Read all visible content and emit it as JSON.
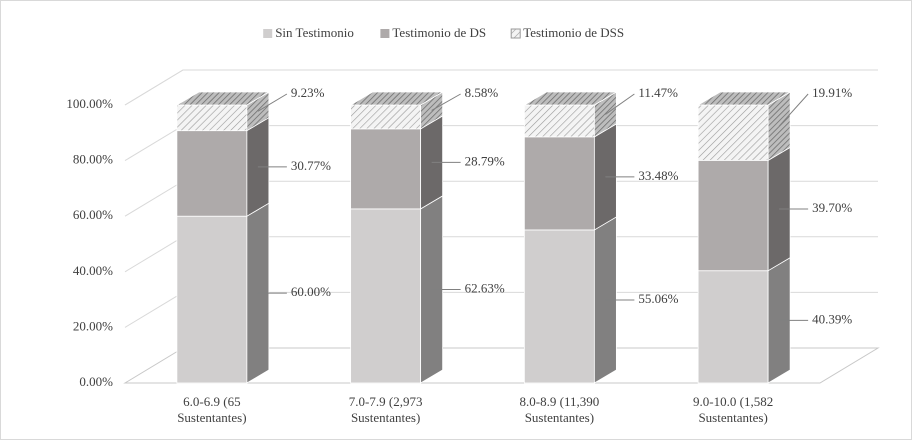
{
  "chart_data": {
    "type": "bar3d_stacked",
    "categories": [
      "6.0-6.9 (65 Sustentantes)",
      "7.0-7.9 (2,973 Sustentantes)",
      "8.0-8.9 (11,390 Sustentantes)",
      "9.0-10.0 (1,582 Sustentantes)"
    ],
    "series": [
      {
        "name": "Sin Testimonio",
        "color": "#d0cece",
        "values": [
          60.0,
          62.63,
          55.06,
          40.39
        ],
        "value_labels": [
          "60.00%",
          "62.63%",
          "55.06%",
          "40.39%"
        ]
      },
      {
        "name": "Testimonio de DS",
        "color": "#aeaaaa",
        "values": [
          30.77,
          28.79,
          33.48,
          39.7
        ],
        "value_labels": [
          "30.77%",
          "28.79%",
          "33.48%",
          "39.70%"
        ]
      },
      {
        "name": "Testimonio de DSS",
        "color": "#e8e8e8",
        "values": [
          9.23,
          8.58,
          11.47,
          19.91
        ],
        "value_labels": [
          "9.23%",
          "8.58%",
          "11.47%",
          "19.91%"
        ]
      }
    ],
    "ylim": [
      0,
      100
    ],
    "yticks": [
      {
        "value": 0,
        "label": "0.00%"
      },
      {
        "value": 20,
        "label": "20.00%"
      },
      {
        "value": 40,
        "label": "40.00%"
      },
      {
        "value": 60,
        "label": "60.00%"
      },
      {
        "value": 80,
        "label": "80.00%"
      },
      {
        "value": 100,
        "label": "100.00%"
      }
    ],
    "grid": true,
    "legend": "top"
  }
}
